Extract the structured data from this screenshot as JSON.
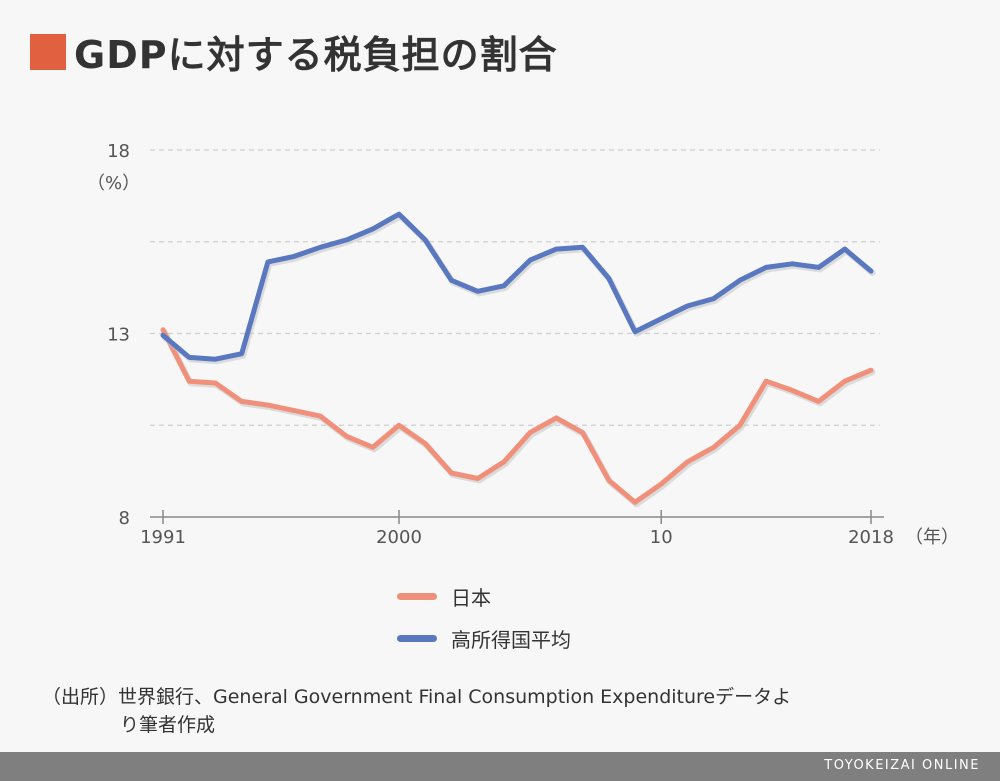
{
  "title": "GDPに対する税負担の割合",
  "colors": {
    "title_square": "#e06040",
    "japan": "#f0907a",
    "high_income": "#5a78c0",
    "grid": "#d0d0d0",
    "axis": "#888888"
  },
  "chart_data": {
    "type": "line",
    "title": "GDPに対する税負担の割合",
    "ylabel": "（%）",
    "xlabel": "（年）",
    "ylim": [
      8,
      18
    ],
    "y_ticks": [
      8,
      13,
      18
    ],
    "y_gridlines": [
      10.5,
      13,
      15.5,
      18
    ],
    "x_tick_labels": [
      {
        "year": 1991,
        "label": "1991"
      },
      {
        "year": 2000,
        "label": "2000"
      },
      {
        "year": 2010,
        "label": "10"
      },
      {
        "year": 2018,
        "label": "2018"
      }
    ],
    "xlim": [
      1991,
      2018
    ],
    "x": [
      1991,
      1992,
      1993,
      1994,
      1995,
      1996,
      1997,
      1998,
      1999,
      2000,
      2001,
      2002,
      2003,
      2004,
      2005,
      2006,
      2007,
      2008,
      2009,
      2010,
      2011,
      2012,
      2013,
      2014,
      2015,
      2016,
      2017,
      2018
    ],
    "series": [
      {
        "name": "日本",
        "color": "#f0907a",
        "values": [
          13.1,
          11.7,
          11.65,
          11.15,
          11.05,
          10.9,
          10.75,
          10.2,
          9.9,
          10.5,
          10.0,
          9.2,
          9.05,
          9.5,
          10.3,
          10.7,
          10.3,
          9.0,
          8.4,
          8.9,
          9.5,
          9.9,
          10.5,
          11.7,
          11.45,
          11.15,
          11.7,
          12.0
        ]
      },
      {
        "name": "高所得国平均",
        "color": "#5a78c0",
        "values": [
          12.95,
          12.35,
          12.3,
          12.45,
          14.95,
          15.1,
          15.35,
          15.55,
          15.85,
          16.25,
          15.55,
          14.45,
          14.15,
          14.3,
          15.0,
          15.3,
          15.35,
          14.5,
          13.05,
          13.4,
          13.75,
          13.95,
          14.45,
          14.8,
          14.9,
          14.8,
          15.3,
          14.7
        ]
      }
    ]
  },
  "legend": [
    {
      "label": "日本",
      "color": "#f0907a"
    },
    {
      "label": "高所得国平均",
      "color": "#5a78c0"
    }
  ],
  "source": {
    "line1": "（出所）世界銀行、General Government Final Consumption Expenditureデータよ",
    "line2": "り筆者作成"
  },
  "footer": "TOYOKEIZAI ONLINE"
}
